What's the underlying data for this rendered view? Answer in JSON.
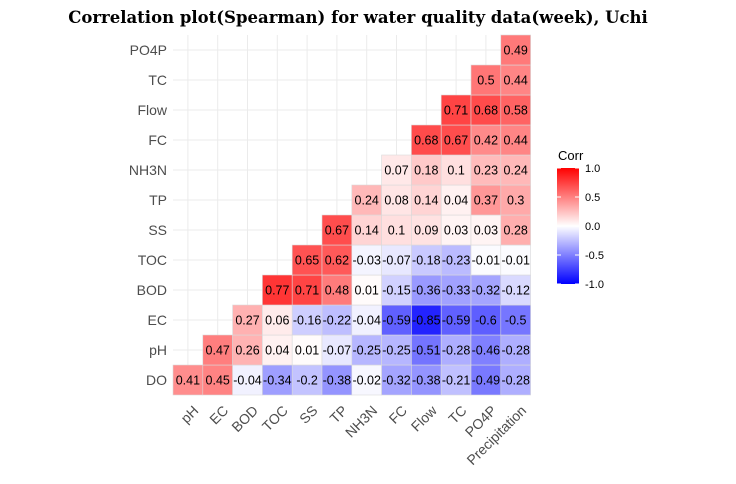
{
  "chart_data": {
    "type": "heatmap",
    "title": "Correlation plot(Spearman) for water quality data(week), Uchi",
    "x_categories": [
      "pH",
      "EC",
      "BOD",
      "TOC",
      "SS",
      "TP",
      "NH3N",
      "FC",
      "Flow",
      "TC",
      "PO4P",
      "Precipitation"
    ],
    "y_categories": [
      "DO",
      "pH",
      "EC",
      "BOD",
      "TOC",
      "SS",
      "TP",
      "NH3N",
      "FC",
      "Flow",
      "TC",
      "PO4P"
    ],
    "values": [
      [
        0.41,
        0.45,
        -0.04,
        -0.34,
        -0.2,
        -0.38,
        -0.02,
        -0.32,
        -0.38,
        -0.21,
        -0.49,
        -0.28
      ],
      [
        null,
        0.47,
        0.26,
        0.04,
        0.01,
        -0.07,
        -0.25,
        -0.25,
        -0.51,
        -0.28,
        -0.46,
        -0.28
      ],
      [
        null,
        null,
        0.27,
        0.06,
        -0.16,
        -0.22,
        -0.04,
        -0.59,
        -0.85,
        -0.59,
        -0.6,
        -0.5
      ],
      [
        null,
        null,
        null,
        0.77,
        0.71,
        0.48,
        0.01,
        -0.15,
        -0.36,
        -0.33,
        -0.32,
        -0.12
      ],
      [
        null,
        null,
        null,
        null,
        0.65,
        0.62,
        -0.03,
        -0.07,
        -0.18,
        -0.23,
        -0.01,
        -0.01
      ],
      [
        null,
        null,
        null,
        null,
        null,
        0.67,
        0.14,
        0.1,
        0.09,
        0.03,
        0.03,
        0.28
      ],
      [
        null,
        null,
        null,
        null,
        null,
        null,
        0.24,
        0.08,
        0.14,
        0.04,
        0.37,
        0.3
      ],
      [
        null,
        null,
        null,
        null,
        null,
        null,
        null,
        0.07,
        0.18,
        0.1,
        0.23,
        0.24
      ],
      [
        null,
        null,
        null,
        null,
        null,
        null,
        null,
        null,
        0.68,
        0.67,
        0.42,
        0.44
      ],
      [
        null,
        null,
        null,
        null,
        null,
        null,
        null,
        null,
        null,
        0.71,
        0.68,
        0.58
      ],
      [
        null,
        null,
        null,
        null,
        null,
        null,
        null,
        null,
        null,
        null,
        0.5,
        0.44
      ],
      [
        null,
        null,
        null,
        null,
        null,
        null,
        null,
        null,
        null,
        null,
        null,
        0.49
      ]
    ],
    "legend": {
      "title": "Corr",
      "ticks": [
        "1.0",
        "0.5",
        "0.0",
        "-0.5",
        "-1.0"
      ],
      "tick_values": [
        1.0,
        0.5,
        0.0,
        -0.5,
        -1.0
      ],
      "range": [
        -1,
        1
      ],
      "colors": {
        "low": "#0000FF",
        "mid": "#FFFFFF",
        "high": "#FF0000"
      },
      "placement": "right"
    },
    "grid": true
  }
}
